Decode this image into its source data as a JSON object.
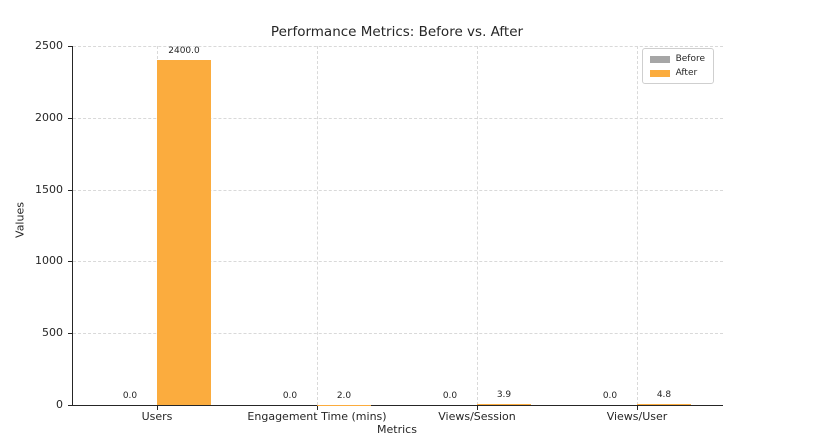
{
  "chart_data": {
    "type": "bar",
    "title": "Performance Metrics: Before vs. After",
    "xlabel": "Metrics",
    "ylabel": "Values",
    "categories": [
      "Users",
      "Engagement Time (mins)",
      "Views/Session",
      "Views/User"
    ],
    "series": [
      {
        "name": "Before",
        "color": "#a6a6a6",
        "values": [
          0.0,
          0.0,
          0.0,
          0.0
        ],
        "bar_labels": [
          "0.0",
          "0.0",
          "0.0",
          "0.0"
        ]
      },
      {
        "name": "After",
        "color": "#fbac3e",
        "values": [
          2400.0,
          2.0,
          3.9,
          4.8
        ],
        "bar_labels": [
          "2400.0",
          "2.0",
          "3.9",
          "4.8"
        ]
      }
    ],
    "ylim": [
      0,
      2500
    ],
    "yticks": [
      0,
      500,
      1000,
      1500,
      2000,
      2500
    ],
    "grid": true,
    "grid_style": "dashed",
    "legend_position": "upper right"
  }
}
